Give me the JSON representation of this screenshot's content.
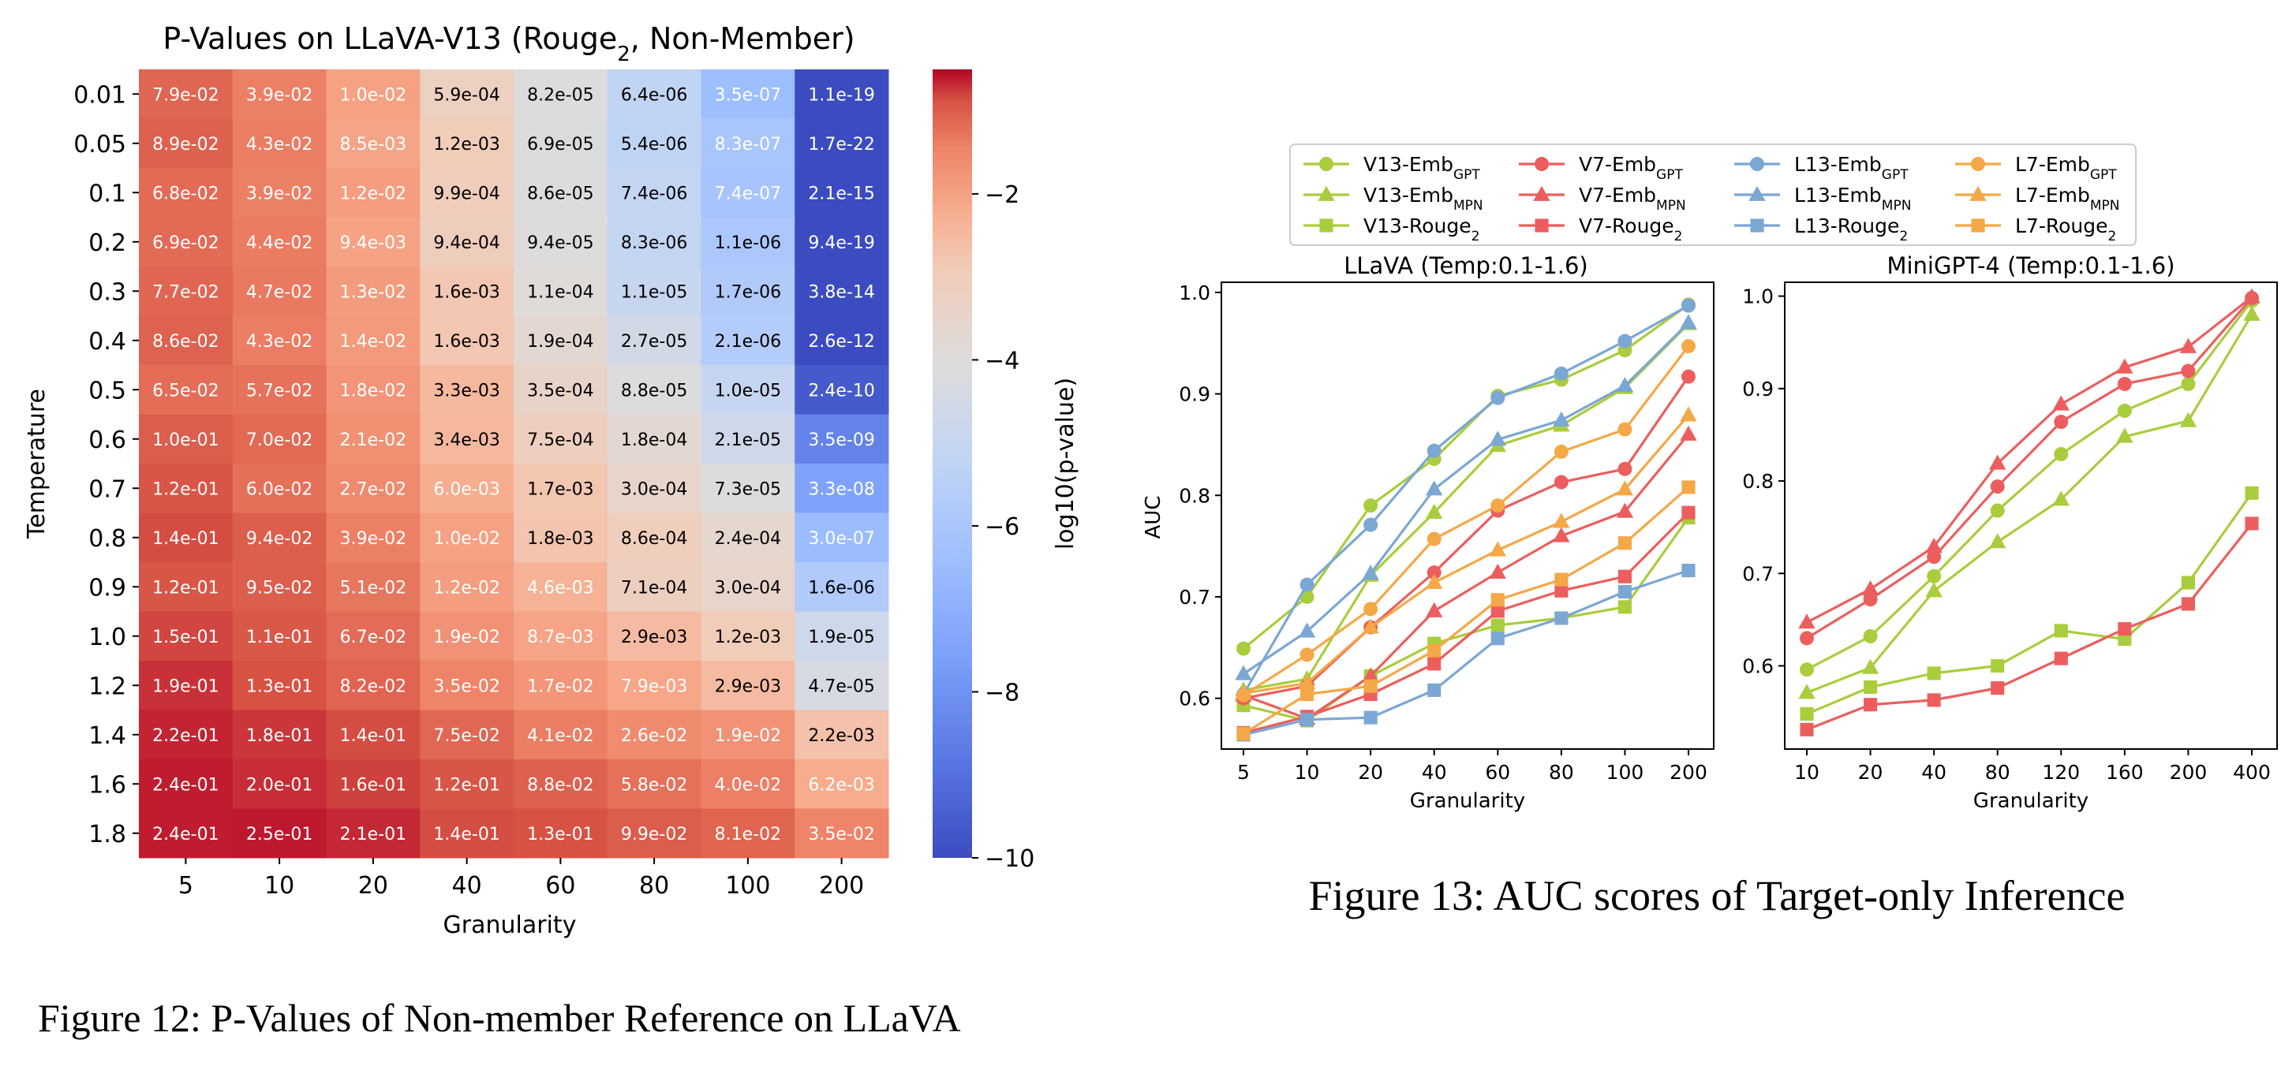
{
  "captions": {
    "fig12": "Figure 12: P-Values of Non-member Reference on LLaVA",
    "fig13": "Figure 13: AUC scores of Target-only Inference"
  },
  "chart_data": [
    {
      "type": "heatmap",
      "title": "P-Values on LLaVA-V13 (Rouge",
      "title_sub": "2",
      "title_suffix": ", Non-Member)",
      "xlabel": "Granularity",
      "ylabel": "Temperature",
      "x": [
        "5",
        "10",
        "20",
        "40",
        "60",
        "80",
        "100",
        "200"
      ],
      "y": [
        "0.01",
        "0.05",
        "0.1",
        "0.2",
        "0.3",
        "0.4",
        "0.5",
        "0.6",
        "0.7",
        "0.8",
        "0.9",
        "1.0",
        "1.2",
        "1.4",
        "1.6",
        "1.8"
      ],
      "cells": [
        [
          "7.9e-02",
          "3.9e-02",
          "1.0e-02",
          "5.9e-04",
          "8.2e-05",
          "6.4e-06",
          "3.5e-07",
          "1.1e-19"
        ],
        [
          "8.9e-02",
          "4.3e-02",
          "8.5e-03",
          "1.2e-03",
          "6.9e-05",
          "5.4e-06",
          "8.3e-07",
          "1.7e-22"
        ],
        [
          "6.8e-02",
          "3.9e-02",
          "1.2e-02",
          "9.9e-04",
          "8.6e-05",
          "7.4e-06",
          "7.4e-07",
          "2.1e-15"
        ],
        [
          "6.9e-02",
          "4.4e-02",
          "9.4e-03",
          "9.4e-04",
          "9.4e-05",
          "8.3e-06",
          "1.1e-06",
          "9.4e-19"
        ],
        [
          "7.7e-02",
          "4.7e-02",
          "1.3e-02",
          "1.6e-03",
          "1.1e-04",
          "1.1e-05",
          "1.7e-06",
          "3.8e-14"
        ],
        [
          "8.6e-02",
          "4.3e-02",
          "1.4e-02",
          "1.6e-03",
          "1.9e-04",
          "2.7e-05",
          "2.1e-06",
          "2.6e-12"
        ],
        [
          "6.5e-02",
          "5.7e-02",
          "1.8e-02",
          "3.3e-03",
          "3.5e-04",
          "8.8e-05",
          "1.0e-05",
          "2.4e-10"
        ],
        [
          "1.0e-01",
          "7.0e-02",
          "2.1e-02",
          "3.4e-03",
          "7.5e-04",
          "1.8e-04",
          "2.1e-05",
          "3.5e-09"
        ],
        [
          "1.2e-01",
          "6.0e-02",
          "2.7e-02",
          "6.0e-03",
          "1.7e-03",
          "3.0e-04",
          "7.3e-05",
          "3.3e-08"
        ],
        [
          "1.4e-01",
          "9.4e-02",
          "3.9e-02",
          "1.0e-02",
          "1.8e-03",
          "8.6e-04",
          "2.4e-04",
          "3.0e-07"
        ],
        [
          "1.2e-01",
          "9.5e-02",
          "5.1e-02",
          "1.2e-02",
          "4.6e-03",
          "7.1e-04",
          "3.0e-04",
          "1.6e-06"
        ],
        [
          "1.5e-01",
          "1.1e-01",
          "6.7e-02",
          "1.9e-02",
          "8.7e-03",
          "2.9e-03",
          "1.2e-03",
          "1.9e-05"
        ],
        [
          "1.9e-01",
          "1.3e-01",
          "8.2e-02",
          "3.5e-02",
          "1.7e-02",
          "7.9e-03",
          "2.9e-03",
          "4.7e-05"
        ],
        [
          "2.2e-01",
          "1.8e-01",
          "1.4e-01",
          "7.5e-02",
          "4.1e-02",
          "2.6e-02",
          "1.9e-02",
          "2.2e-03"
        ],
        [
          "2.4e-01",
          "2.0e-01",
          "1.6e-01",
          "1.2e-01",
          "8.8e-02",
          "5.8e-02",
          "4.0e-02",
          "6.2e-03"
        ],
        [
          "2.4e-01",
          "2.5e-01",
          "2.1e-01",
          "1.4e-01",
          "1.3e-01",
          "9.9e-02",
          "8.1e-02",
          "3.5e-02"
        ]
      ],
      "colorbar": {
        "label": "log10(p-value)",
        "ticks": [
          -2,
          -4,
          -6,
          -8,
          -10
        ],
        "tick_labels": [
          "−2",
          "−4",
          "−6",
          "−8",
          "−10"
        ],
        "range": [
          -10,
          -0.5
        ],
        "colormap": "coolwarm"
      }
    },
    {
      "type": "line",
      "title": "LLaVA (Temp:0.1-1.6)",
      "xlabel": "Granularity",
      "ylabel": "AUC",
      "categories": [
        "5",
        "10",
        "20",
        "40",
        "60",
        "80",
        "100",
        "200"
      ],
      "ylim": [
        0.55,
        1.01
      ],
      "yticks": [
        0.6,
        0.7,
        0.8,
        0.9,
        1.0
      ],
      "ytick_labels": [
        "0.6",
        "0.7",
        "0.8",
        "0.9",
        "1.0"
      ],
      "series": [
        {
          "name": "V13-Emb",
          "sub": "GPT",
          "marker": "circle",
          "color": "#a9cd3c",
          "values": [
            0.649,
            0.7,
            0.79,
            0.836,
            0.898,
            0.914,
            0.943,
            0.988
          ]
        },
        {
          "name": "V13-Emb",
          "sub": "MPN",
          "marker": "triangle",
          "color": "#a9cd3c",
          "values": [
            0.608,
            0.619,
            0.721,
            0.783,
            0.849,
            0.869,
            0.906,
            0.969
          ]
        },
        {
          "name": "V13-Rouge",
          "sub": "2",
          "marker": "square",
          "color": "#a9cd3c",
          "values": [
            0.593,
            0.578,
            0.622,
            0.654,
            0.672,
            0.679,
            0.69,
            0.778
          ]
        },
        {
          "name": "V7-Emb",
          "sub": "GPT",
          "marker": "circle",
          "color": "#ec5e5e",
          "values": [
            0.6,
            0.612,
            0.67,
            0.724,
            0.785,
            0.813,
            0.826,
            0.917
          ]
        },
        {
          "name": "V7-Emb",
          "sub": "MPN",
          "marker": "triangle",
          "color": "#ec5e5e",
          "values": [
            0.603,
            0.58,
            0.622,
            0.686,
            0.724,
            0.76,
            0.784,
            0.86
          ]
        },
        {
          "name": "V7-Rouge",
          "sub": "2",
          "marker": "square",
          "color": "#ec5e5e",
          "values": [
            0.566,
            0.582,
            0.604,
            0.634,
            0.686,
            0.706,
            0.72,
            0.783
          ]
        },
        {
          "name": "L13-Emb",
          "sub": "GPT",
          "marker": "circle",
          "color": "#7ba7d4",
          "values": [
            0.604,
            0.712,
            0.771,
            0.844,
            0.896,
            0.92,
            0.952,
            0.987
          ]
        },
        {
          "name": "L13-Emb",
          "sub": "MPN",
          "marker": "triangle",
          "color": "#7ba7d4",
          "values": [
            0.624,
            0.666,
            0.723,
            0.806,
            0.855,
            0.874,
            0.908,
            0.97
          ]
        },
        {
          "name": "L13-Rouge",
          "sub": "2",
          "marker": "square",
          "color": "#7ba7d4",
          "values": [
            0.564,
            0.579,
            0.581,
            0.608,
            0.659,
            0.679,
            0.705,
            0.726
          ]
        },
        {
          "name": "L7-Emb",
          "sub": "GPT",
          "marker": "circle",
          "color": "#f4a847",
          "values": [
            0.603,
            0.643,
            0.688,
            0.757,
            0.79,
            0.843,
            0.865,
            0.947
          ]
        },
        {
          "name": "L7-Emb",
          "sub": "MPN",
          "marker": "triangle",
          "color": "#f4a847",
          "values": [
            0.605,
            0.615,
            0.67,
            0.714,
            0.746,
            0.774,
            0.806,
            0.879
          ]
        },
        {
          "name": "L7-Rouge",
          "sub": "2",
          "marker": "square",
          "color": "#f4a847",
          "values": [
            0.565,
            0.604,
            0.612,
            0.647,
            0.697,
            0.717,
            0.753,
            0.808
          ]
        }
      ]
    },
    {
      "type": "line",
      "title": "MiniGPT-4 (Temp:0.1-1.6)",
      "xlabel": "Granularity",
      "ylabel": "",
      "categories": [
        "10",
        "20",
        "40",
        "80",
        "120",
        "160",
        "200",
        "400"
      ],
      "ylim": [
        0.51,
        1.015
      ],
      "yticks": [
        0.6,
        0.7,
        0.8,
        0.9,
        1.0
      ],
      "ytick_labels": [
        "0.6",
        "0.7",
        "0.8",
        "0.9",
        "1.0"
      ],
      "series": [
        {
          "name": "V13-Emb",
          "sub": "GPT",
          "marker": "circle",
          "color": "#a9cd3c",
          "values": [
            0.596,
            0.632,
            0.697,
            0.768,
            0.829,
            0.876,
            0.905,
            0.995
          ]
        },
        {
          "name": "V13-Emb",
          "sub": "MPN",
          "marker": "triangle",
          "color": "#a9cd3c",
          "values": [
            0.571,
            0.598,
            0.681,
            0.734,
            0.78,
            0.848,
            0.865,
            0.98
          ]
        },
        {
          "name": "V13-Rouge",
          "sub": "2",
          "marker": "square",
          "color": "#a9cd3c",
          "values": [
            0.548,
            0.577,
            0.592,
            0.6,
            0.638,
            0.629,
            0.69,
            0.787
          ]
        },
        {
          "name": "V7-Emb",
          "sub": "GPT",
          "marker": "circle",
          "color": "#ec5e5e",
          "values": [
            0.63,
            0.672,
            0.718,
            0.794,
            0.864,
            0.905,
            0.919,
            0.998
          ]
        },
        {
          "name": "V7-Emb",
          "sub": "MPN",
          "marker": "triangle",
          "color": "#ec5e5e",
          "values": [
            0.647,
            0.683,
            0.729,
            0.819,
            0.883,
            0.923,
            0.945,
            0.999
          ]
        },
        {
          "name": "V7-Rouge",
          "sub": "2",
          "marker": "square",
          "color": "#ec5e5e",
          "values": [
            0.531,
            0.558,
            0.563,
            0.576,
            0.608,
            0.64,
            0.667,
            0.754
          ]
        }
      ]
    }
  ]
}
